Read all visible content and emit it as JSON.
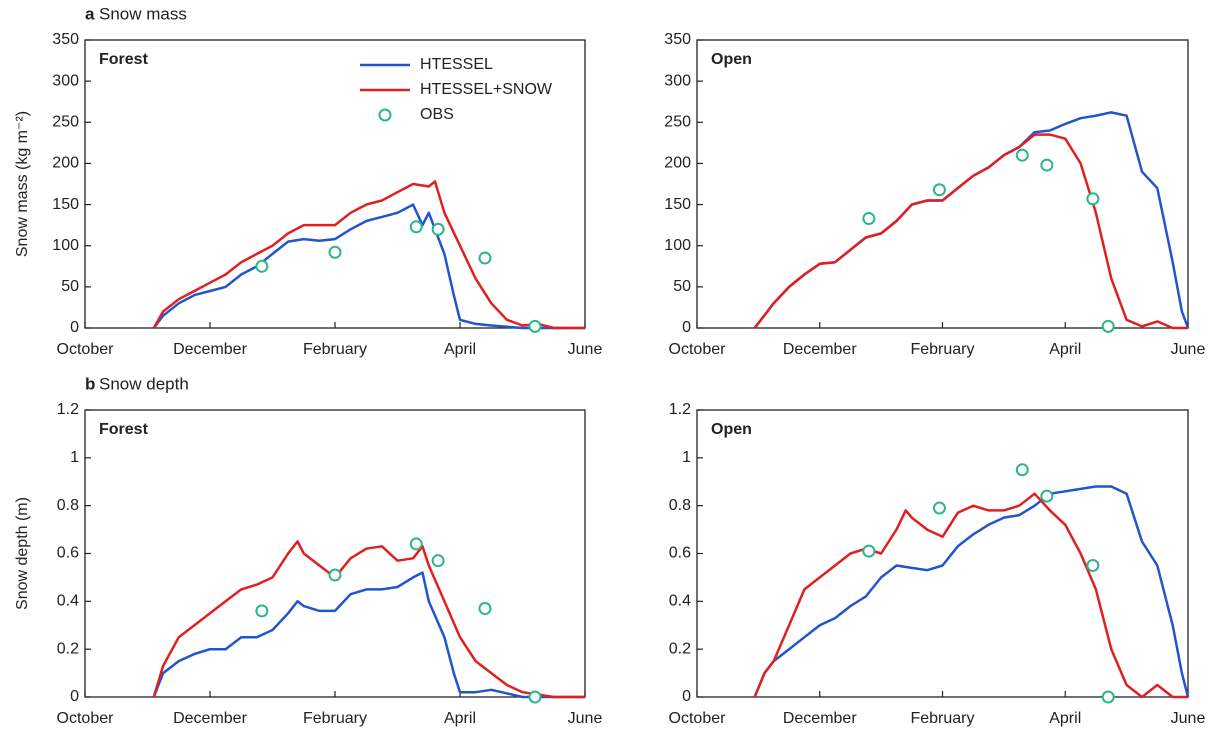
{
  "chart_data": [
    {
      "type": "line",
      "panel_label": "a",
      "title": "Snow mass",
      "subtitle": "Forest",
      "ylabel": "Snow mass (kg m⁻²)",
      "legend": "upper right",
      "xlim": [
        0,
        8
      ],
      "xticks": [
        {
          "value": 0,
          "label": "October"
        },
        {
          "value": 2,
          "label": "December"
        },
        {
          "value": 4,
          "label": "February"
        },
        {
          "value": 6,
          "label": "April"
        },
        {
          "value": 8,
          "label": "June"
        }
      ],
      "ylim": [
        0,
        350
      ],
      "yticks": [
        0,
        50,
        100,
        150,
        200,
        250,
        300,
        350
      ],
      "series": [
        {
          "name": "HTESSEL",
          "type": "line",
          "color": "#2255cc",
          "x": [
            1.1,
            1.25,
            1.5,
            1.75,
            2.0,
            2.25,
            2.5,
            2.75,
            3.0,
            3.25,
            3.5,
            3.75,
            4.0,
            4.25,
            4.5,
            4.75,
            5.0,
            5.25,
            5.4,
            5.5,
            5.75,
            5.9,
            6.0,
            6.25,
            6.5,
            7.0,
            8.0
          ],
          "values": [
            0,
            15,
            30,
            40,
            45,
            50,
            65,
            75,
            90,
            105,
            108,
            106,
            108,
            120,
            130,
            135,
            140,
            150,
            125,
            140,
            90,
            40,
            10,
            5,
            3,
            0,
            0
          ]
        },
        {
          "name": "HTESSEL+SNOW",
          "type": "line",
          "color": "#e02020",
          "x": [
            1.1,
            1.25,
            1.5,
            1.75,
            2.0,
            2.25,
            2.5,
            2.75,
            3.0,
            3.25,
            3.5,
            3.75,
            4.0,
            4.25,
            4.5,
            4.75,
            5.0,
            5.25,
            5.5,
            5.6,
            5.75,
            6.0,
            6.25,
            6.5,
            6.75,
            7.0,
            7.25,
            7.5,
            8.0
          ],
          "values": [
            0,
            20,
            35,
            45,
            55,
            65,
            80,
            90,
            100,
            115,
            125,
            125,
            125,
            140,
            150,
            155,
            165,
            175,
            172,
            178,
            140,
            100,
            60,
            30,
            10,
            3,
            5,
            0,
            0
          ]
        },
        {
          "name": "OBS",
          "type": "scatter",
          "color": "#2bb58a",
          "x": [
            2.83,
            4.0,
            5.3,
            5.65,
            6.4,
            7.2
          ],
          "values": [
            75,
            92,
            123,
            120,
            85,
            2
          ]
        }
      ]
    },
    {
      "type": "line",
      "subtitle": "Open",
      "xlim": [
        0,
        8
      ],
      "xticks": [
        {
          "value": 0,
          "label": "October"
        },
        {
          "value": 2,
          "label": "December"
        },
        {
          "value": 4,
          "label": "February"
        },
        {
          "value": 6,
          "label": "April"
        },
        {
          "value": 8,
          "label": "June"
        }
      ],
      "ylim": [
        0,
        350
      ],
      "yticks": [
        0,
        50,
        100,
        150,
        200,
        250,
        300,
        350
      ],
      "series": [
        {
          "type": "line",
          "color": "#2255cc",
          "x": [
            0.94,
            1.25,
            1.5,
            1.75,
            2.0,
            2.25,
            2.5,
            2.75,
            3.0,
            3.25,
            3.5,
            3.75,
            4.0,
            4.25,
            4.5,
            4.75,
            5.0,
            5.25,
            5.5,
            5.75,
            6.0,
            6.25,
            6.5,
            6.75,
            7.0,
            7.25,
            7.5,
            7.75,
            7.9,
            8.0
          ],
          "values": [
            0,
            30,
            50,
            65,
            78,
            80,
            95,
            110,
            115,
            130,
            150,
            155,
            155,
            170,
            185,
            195,
            210,
            220,
            238,
            240,
            248,
            255,
            258,
            262,
            258,
            190,
            170,
            80,
            20,
            0
          ]
        },
        {
          "type": "line",
          "color": "#e02020",
          "x": [
            0.94,
            1.25,
            1.5,
            1.75,
            2.0,
            2.25,
            2.5,
            2.75,
            3.0,
            3.25,
            3.5,
            3.75,
            4.0,
            4.25,
            4.5,
            4.75,
            5.0,
            5.25,
            5.5,
            5.75,
            6.0,
            6.25,
            6.5,
            6.75,
            7.0,
            7.25,
            7.5,
            7.75,
            8.0
          ],
          "values": [
            0,
            30,
            50,
            65,
            78,
            80,
            95,
            110,
            115,
            130,
            150,
            155,
            155,
            170,
            185,
            195,
            210,
            220,
            235,
            235,
            230,
            200,
            140,
            60,
            10,
            2,
            8,
            0,
            0
          ]
        },
        {
          "type": "scatter",
          "color": "#2bb58a",
          "x": [
            2.8,
            3.95,
            5.3,
            5.7,
            6.45,
            6.7
          ],
          "values": [
            133,
            168,
            210,
            198,
            157,
            2
          ]
        }
      ]
    },
    {
      "type": "line",
      "panel_label": "b",
      "title": "Snow depth",
      "subtitle": "Forest",
      "ylabel": "Snow depth (m)",
      "xlim": [
        0,
        8
      ],
      "xticks": [
        {
          "value": 0,
          "label": "October"
        },
        {
          "value": 2,
          "label": "December"
        },
        {
          "value": 4,
          "label": "February"
        },
        {
          "value": 6,
          "label": "April"
        },
        {
          "value": 8,
          "label": "June"
        }
      ],
      "ylim": [
        0,
        1.2
      ],
      "yticks": [
        0,
        0.2,
        0.4,
        0.6,
        0.8,
        1,
        1.2
      ],
      "series": [
        {
          "type": "line",
          "color": "#2255cc",
          "x": [
            1.1,
            1.25,
            1.5,
            1.75,
            2.0,
            2.25,
            2.5,
            2.75,
            3.0,
            3.25,
            3.4,
            3.5,
            3.75,
            4.0,
            4.25,
            4.5,
            4.75,
            5.0,
            5.25,
            5.4,
            5.5,
            5.75,
            5.9,
            6.0,
            6.25,
            6.5,
            7.0,
            8.0
          ],
          "values": [
            0,
            0.1,
            0.15,
            0.18,
            0.2,
            0.2,
            0.25,
            0.25,
            0.28,
            0.35,
            0.4,
            0.38,
            0.36,
            0.36,
            0.43,
            0.45,
            0.45,
            0.46,
            0.5,
            0.52,
            0.4,
            0.25,
            0.1,
            0.02,
            0.02,
            0.03,
            0,
            0
          ]
        },
        {
          "type": "line",
          "color": "#e02020",
          "x": [
            1.1,
            1.25,
            1.5,
            1.75,
            2.0,
            2.25,
            2.5,
            2.75,
            3.0,
            3.25,
            3.4,
            3.5,
            3.75,
            4.0,
            4.25,
            4.5,
            4.75,
            5.0,
            5.25,
            5.4,
            5.5,
            5.75,
            6.0,
            6.25,
            6.5,
            6.75,
            7.0,
            7.5,
            8.0
          ],
          "values": [
            0,
            0.13,
            0.25,
            0.3,
            0.35,
            0.4,
            0.45,
            0.47,
            0.5,
            0.6,
            0.65,
            0.6,
            0.55,
            0.5,
            0.58,
            0.62,
            0.63,
            0.57,
            0.58,
            0.63,
            0.55,
            0.4,
            0.25,
            0.15,
            0.1,
            0.05,
            0.02,
            0,
            0
          ]
        },
        {
          "type": "scatter",
          "color": "#2bb58a",
          "x": [
            2.83,
            4.0,
            5.3,
            5.65,
            6.4,
            7.2
          ],
          "values": [
            0.36,
            0.51,
            0.64,
            0.57,
            0.37,
            0
          ]
        }
      ]
    },
    {
      "type": "line",
      "subtitle": "Open",
      "xlim": [
        0,
        8
      ],
      "xticks": [
        {
          "value": 0,
          "label": "October"
        },
        {
          "value": 2,
          "label": "December"
        },
        {
          "value": 4,
          "label": "February"
        },
        {
          "value": 6,
          "label": "April"
        },
        {
          "value": 8,
          "label": "June"
        }
      ],
      "ylim": [
        0,
        1.2
      ],
      "yticks": [
        0,
        0.2,
        0.4,
        0.6,
        0.8,
        1,
        1.2
      ],
      "series": [
        {
          "type": "line",
          "color": "#2255cc",
          "x": [
            0.94,
            1.1,
            1.25,
            1.5,
            1.75,
            2.0,
            2.25,
            2.5,
            2.75,
            3.0,
            3.25,
            3.5,
            3.75,
            4.0,
            4.25,
            4.5,
            4.75,
            5.0,
            5.25,
            5.5,
            5.75,
            6.0,
            6.25,
            6.5,
            6.75,
            7.0,
            7.25,
            7.5,
            7.75,
            7.9,
            8.0
          ],
          "values": [
            0,
            0.1,
            0.15,
            0.2,
            0.25,
            0.3,
            0.33,
            0.38,
            0.42,
            0.5,
            0.55,
            0.54,
            0.53,
            0.55,
            0.63,
            0.68,
            0.72,
            0.75,
            0.76,
            0.8,
            0.85,
            0.86,
            0.87,
            0.88,
            0.88,
            0.85,
            0.65,
            0.55,
            0.3,
            0.1,
            0
          ]
        },
        {
          "type": "line",
          "color": "#e02020",
          "x": [
            0.94,
            1.1,
            1.25,
            1.5,
            1.75,
            2.0,
            2.25,
            2.5,
            2.75,
            3.0,
            3.25,
            3.4,
            3.5,
            3.75,
            4.0,
            4.25,
            4.5,
            4.75,
            5.0,
            5.25,
            5.5,
            5.75,
            6.0,
            6.25,
            6.5,
            6.75,
            7.0,
            7.25,
            7.5,
            7.75,
            8.0
          ],
          "values": [
            0,
            0.1,
            0.15,
            0.3,
            0.45,
            0.5,
            0.55,
            0.6,
            0.62,
            0.6,
            0.7,
            0.78,
            0.75,
            0.7,
            0.67,
            0.77,
            0.8,
            0.78,
            0.78,
            0.8,
            0.85,
            0.78,
            0.72,
            0.6,
            0.45,
            0.2,
            0.05,
            0,
            0.05,
            0,
            0
          ]
        },
        {
          "type": "scatter",
          "color": "#2bb58a",
          "x": [
            2.8,
            3.95,
            5.3,
            5.7,
            6.45,
            6.7
          ],
          "values": [
            0.61,
            0.79,
            0.95,
            0.84,
            0.55,
            0
          ]
        }
      ]
    }
  ]
}
